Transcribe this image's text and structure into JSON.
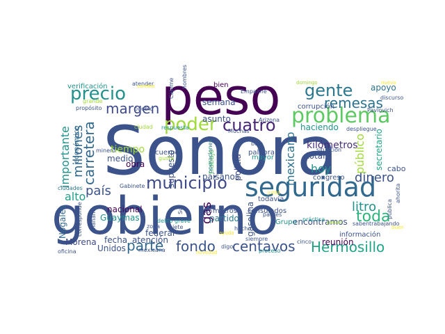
{
  "word_cloud": {
    "words": [
      {
        "text": "Sonora",
        "color": "#3b528b"
      },
      {
        "text": "gobierno",
        "color": "#3b528b"
      },
      {
        "text": "peso",
        "color": "#440154"
      },
      {
        "text": "seguridad",
        "color": "#31688e"
      },
      {
        "text": "problema",
        "color": "#5ec962"
      },
      {
        "text": "precio",
        "color": "#21918c"
      },
      {
        "text": "gente",
        "color": "#2a788e"
      },
      {
        "text": "municipio",
        "color": "#3e4a89"
      },
      {
        "text": "cuatro",
        "color": "#482677"
      },
      {
        "text": "poder",
        "color": "#a0da39"
      },
      {
        "text": "margen",
        "color": "#3e4a89"
      },
      {
        "text": "remesas",
        "color": "#2c728e"
      },
      {
        "text": "parte",
        "color": "#31688e"
      },
      {
        "text": "fondo",
        "color": "#3b528b"
      },
      {
        "text": "centavos",
        "color": "#3b528b"
      },
      {
        "text": "Hermosillo",
        "color": "#20a486"
      },
      {
        "text": "toda",
        "color": "#2fb47c"
      },
      {
        "text": "litro",
        "color": "#21918c"
      },
      {
        "text": "dinero",
        "color": "#3b528b"
      },
      {
        "text": "país",
        "color": "#3b528b"
      },
      {
        "text": "carretera",
        "color": "#31688e"
      },
      {
        "text": "importante",
        "color": "#21918c"
      },
      {
        "text": "millones",
        "color": "#31688e"
      },
      {
        "text": "mexicano",
        "color": "#2c728e"
      },
      {
        "text": "kilómetros",
        "color": "#472d7b"
      },
      {
        "text": "gas",
        "color": "#440154"
      },
      {
        "text": "hoy",
        "color": "#21918c"
      },
      {
        "text": "alto",
        "color": "#1f9e89"
      },
      {
        "text": "público",
        "color": "#a0da39"
      },
      {
        "text": "secretario",
        "color": "#20a486"
      },
      {
        "text": "apoyo",
        "color": "#2c728e"
      },
      {
        "text": "haciendo",
        "color": "#21918c"
      },
      {
        "text": "tiempo",
        "color": "#a0da39"
      },
      {
        "text": "policía",
        "color": "#3e4a89"
      },
      {
        "text": "gasolina",
        "color": "#3b528b"
      },
      {
        "text": "total",
        "color": "#3b528b"
      },
      {
        "text": "encontramos",
        "color": "#3b528b"
      },
      {
        "text": "reunión",
        "color": "#440154"
      },
      {
        "text": "Guaymas",
        "color": "#21918c"
      },
      {
        "text": "federal",
        "color": "#3b528b"
      },
      {
        "text": "nacional",
        "color": "#440154"
      },
      {
        "text": "Morena",
        "color": "#3e4a89"
      },
      {
        "text": "Nogales",
        "color": "#31688e"
      },
      {
        "text": "Unidos",
        "color": "#3b528b"
      },
      {
        "text": "fecha",
        "color": "#3b528b"
      },
      {
        "text": "atención",
        "color": "#3b528b"
      },
      {
        "text": "obra",
        "color": "#440154"
      },
      {
        "text": "medio",
        "color": "#3b528b"
      },
      {
        "text": "supuesto",
        "color": "#3b528b"
      },
      {
        "text": "paisanos",
        "color": "#3b528b"
      },
      {
        "text": "trabajo",
        "color": "#5ec962"
      },
      {
        "text": "partido",
        "color": "#2a788e"
      },
      {
        "text": "semana",
        "color": "#3b528b"
      },
      {
        "text": "asunto",
        "color": "#3b528b"
      },
      {
        "text": "Grupo",
        "color": "#21918c"
      },
      {
        "text": "cabo",
        "color": "#3b528b"
      },
      {
        "text": "económico",
        "color": "#31688e"
      },
      {
        "text": "verificación",
        "color": "#21918c"
      },
      {
        "text": "corrupción",
        "color": "#3b528b"
      },
      {
        "text": "consulados",
        "color": "#3b528b"
      },
      {
        "text": "metros",
        "color": "#3b528b"
      },
      {
        "text": "congreso",
        "color": "#3b528b"
      },
      {
        "text": "todavía",
        "color": "#3b528b"
      },
      {
        "text": "información",
        "color": "#3b528b"
      },
      {
        "text": "cuerpo",
        "color": "#3b528b"
      },
      {
        "text": "palabra",
        "color": "#3b528b"
      },
      {
        "text": "mayor",
        "color": "#21918c"
      },
      {
        "text": "situación",
        "color": "#3b528b"
      },
      {
        "text": "despliegue",
        "color": "#3b528b"
      },
      {
        "text": "Pavlovich",
        "color": "#3b528b"
      },
      {
        "text": "bien",
        "color": "#440154"
      },
      {
        "text": "bajo",
        "color": "#3b528b"
      },
      {
        "text": "hizo",
        "color": "#3b528b"
      },
      {
        "text": "Sur",
        "color": "#3b528b"
      },
      {
        "text": "Arizona",
        "color": "#3b528b"
      },
      {
        "text": "discurso",
        "color": "#3b528b"
      },
      {
        "text": "Empalme",
        "color": "#3b528b"
      },
      {
        "text": "Cajeme",
        "color": "#3b528b"
      },
      {
        "text": "hombres",
        "color": "#3b528b"
      },
      {
        "text": "atender",
        "color": "#3b528b"
      },
      {
        "text": "Muchas",
        "color": "#3b528b"
      },
      {
        "text": "propósito",
        "color": "#3b528b"
      },
      {
        "text": "pueblo",
        "color": "#3b528b"
      },
      {
        "text": "grande",
        "color": "#a0da39"
      },
      {
        "text": "respuesta",
        "color": "#21918c"
      },
      {
        "text": "ciudad",
        "color": "#a0da39"
      },
      {
        "text": "minero",
        "color": "#3b528b"
      },
      {
        "text": "gusto",
        "color": "#a0da39"
      },
      {
        "text": "operaciones",
        "color": "#2a788e"
      },
      {
        "text": "ciudades",
        "color": "#2a788e"
      },
      {
        "text": "Gabinete",
        "color": "#3b528b"
      },
      {
        "text": "delito grave",
        "color": "#21918c"
      },
      {
        "text": "zona",
        "color": "#3b528b"
      },
      {
        "text": "siete",
        "color": "#3b528b"
      },
      {
        "text": "siempre",
        "color": "#3b528b"
      },
      {
        "text": "digo",
        "color": "#3b528b"
      },
      {
        "text": "proceso",
        "color": "#21918c"
      },
      {
        "text": "padres",
        "color": "#3b528b"
      },
      {
        "text": "cinco",
        "color": "#3b528b"
      },
      {
        "text": "práctica",
        "color": "#21918c"
      },
      {
        "text": "pesar",
        "color": "#a0da39"
      },
      {
        "text": "saben",
        "color": "#3b528b"
      },
      {
        "text": "trabajando",
        "color": "#3b528b"
      },
      {
        "text": "mañana",
        "color": "#3b528b"
      },
      {
        "text": "mexicana",
        "color": "#3b528b"
      },
      {
        "text": "corresponde",
        "color": "#3b528b"
      },
      {
        "text": "oficina",
        "color": "#3b528b"
      },
      {
        "text": "pública",
        "color": "#3b528b"
      },
      {
        "text": "ahorita",
        "color": "#3b528b"
      },
      {
        "text": "hecho",
        "color": "#3b528b"
      },
      {
        "text": "domingo",
        "color": "#a0da39"
      },
      {
        "text": "novedad",
        "color": "#fde725"
      },
      {
        "text": "junta",
        "color": "#fde725"
      },
      {
        "text": "ayuda",
        "color": "#fde725"
      },
      {
        "text": "nuevo",
        "color": "#fde725"
      },
      {
        "text": "buen",
        "color": "#fde725"
      },
      {
        "text": "cambio",
        "color": "#fde725"
      },
      {
        "text": "lado",
        "color": "#fde725"
      }
    ]
  }
}
